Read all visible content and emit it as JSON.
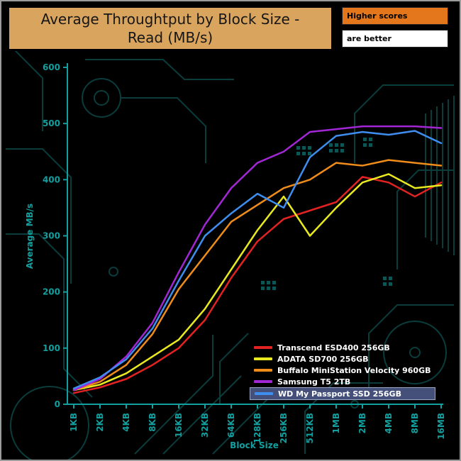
{
  "title": {
    "line1": "Average Throughtput by Block Size -",
    "line2": "Read (MB/s)"
  },
  "score_note": {
    "line1": "Higher scores",
    "line2": "are better"
  },
  "colors": {
    "banner_bg": "#d9a45e",
    "badge_orange": "#e4771b",
    "axis_teal": "#129f9f",
    "legend_highlight_bg": "#44507a",
    "legend_highlight_border": "#9aa6c6",
    "background": "#000000",
    "circuit_trace": "#0c4343"
  },
  "chart_data": {
    "type": "line",
    "title": "Average Throughtput by Block Size - Read (MB/s)",
    "xlabel": "Block Size",
    "ylabel": "Average MB/s",
    "ylim": [
      0,
      600
    ],
    "yticks": [
      0,
      100,
      200,
      300,
      400,
      500,
      600
    ],
    "grid": false,
    "legend_position": "inside-bottom-right",
    "categories": [
      "1KB",
      "2KB",
      "4KB",
      "8KB",
      "16KB",
      "32KB",
      "64KB",
      "128KB",
      "256KB",
      "512KB",
      "1MB",
      "2MB",
      "4MB",
      "8MB",
      "16MB"
    ],
    "series": [
      {
        "name": "Transcend ESD400 256GB",
        "color": "#e32222",
        "highlighted": false,
        "values": [
          20,
          30,
          45,
          70,
          100,
          150,
          225,
          290,
          330,
          345,
          360,
          405,
          395,
          370,
          395
        ]
      },
      {
        "name": "ADATA SD700 256GB",
        "color": "#e9e91f",
        "highlighted": false,
        "values": [
          25,
          35,
          55,
          85,
          115,
          170,
          240,
          310,
          370,
          300,
          350,
          395,
          410,
          385,
          390
        ]
      },
      {
        "name": "Buffalo MiniStation Velocity 960GB",
        "color": "#ef8c1a",
        "highlighted": false,
        "values": [
          25,
          40,
          70,
          125,
          205,
          265,
          325,
          355,
          385,
          400,
          430,
          425,
          435,
          430,
          425
        ]
      },
      {
        "name": "Samsung T5 2TB",
        "color": "#a227d4",
        "highlighted": false,
        "values": [
          25,
          45,
          85,
          145,
          235,
          320,
          385,
          430,
          450,
          485,
          490,
          495,
          495,
          495,
          492
        ]
      },
      {
        "name": "WD My Passport SSD 256GB",
        "color": "#3e8ef0",
        "highlighted": true,
        "values": [
          28,
          48,
          80,
          135,
          220,
          300,
          340,
          375,
          350,
          440,
          478,
          485,
          480,
          487,
          465
        ]
      }
    ]
  }
}
